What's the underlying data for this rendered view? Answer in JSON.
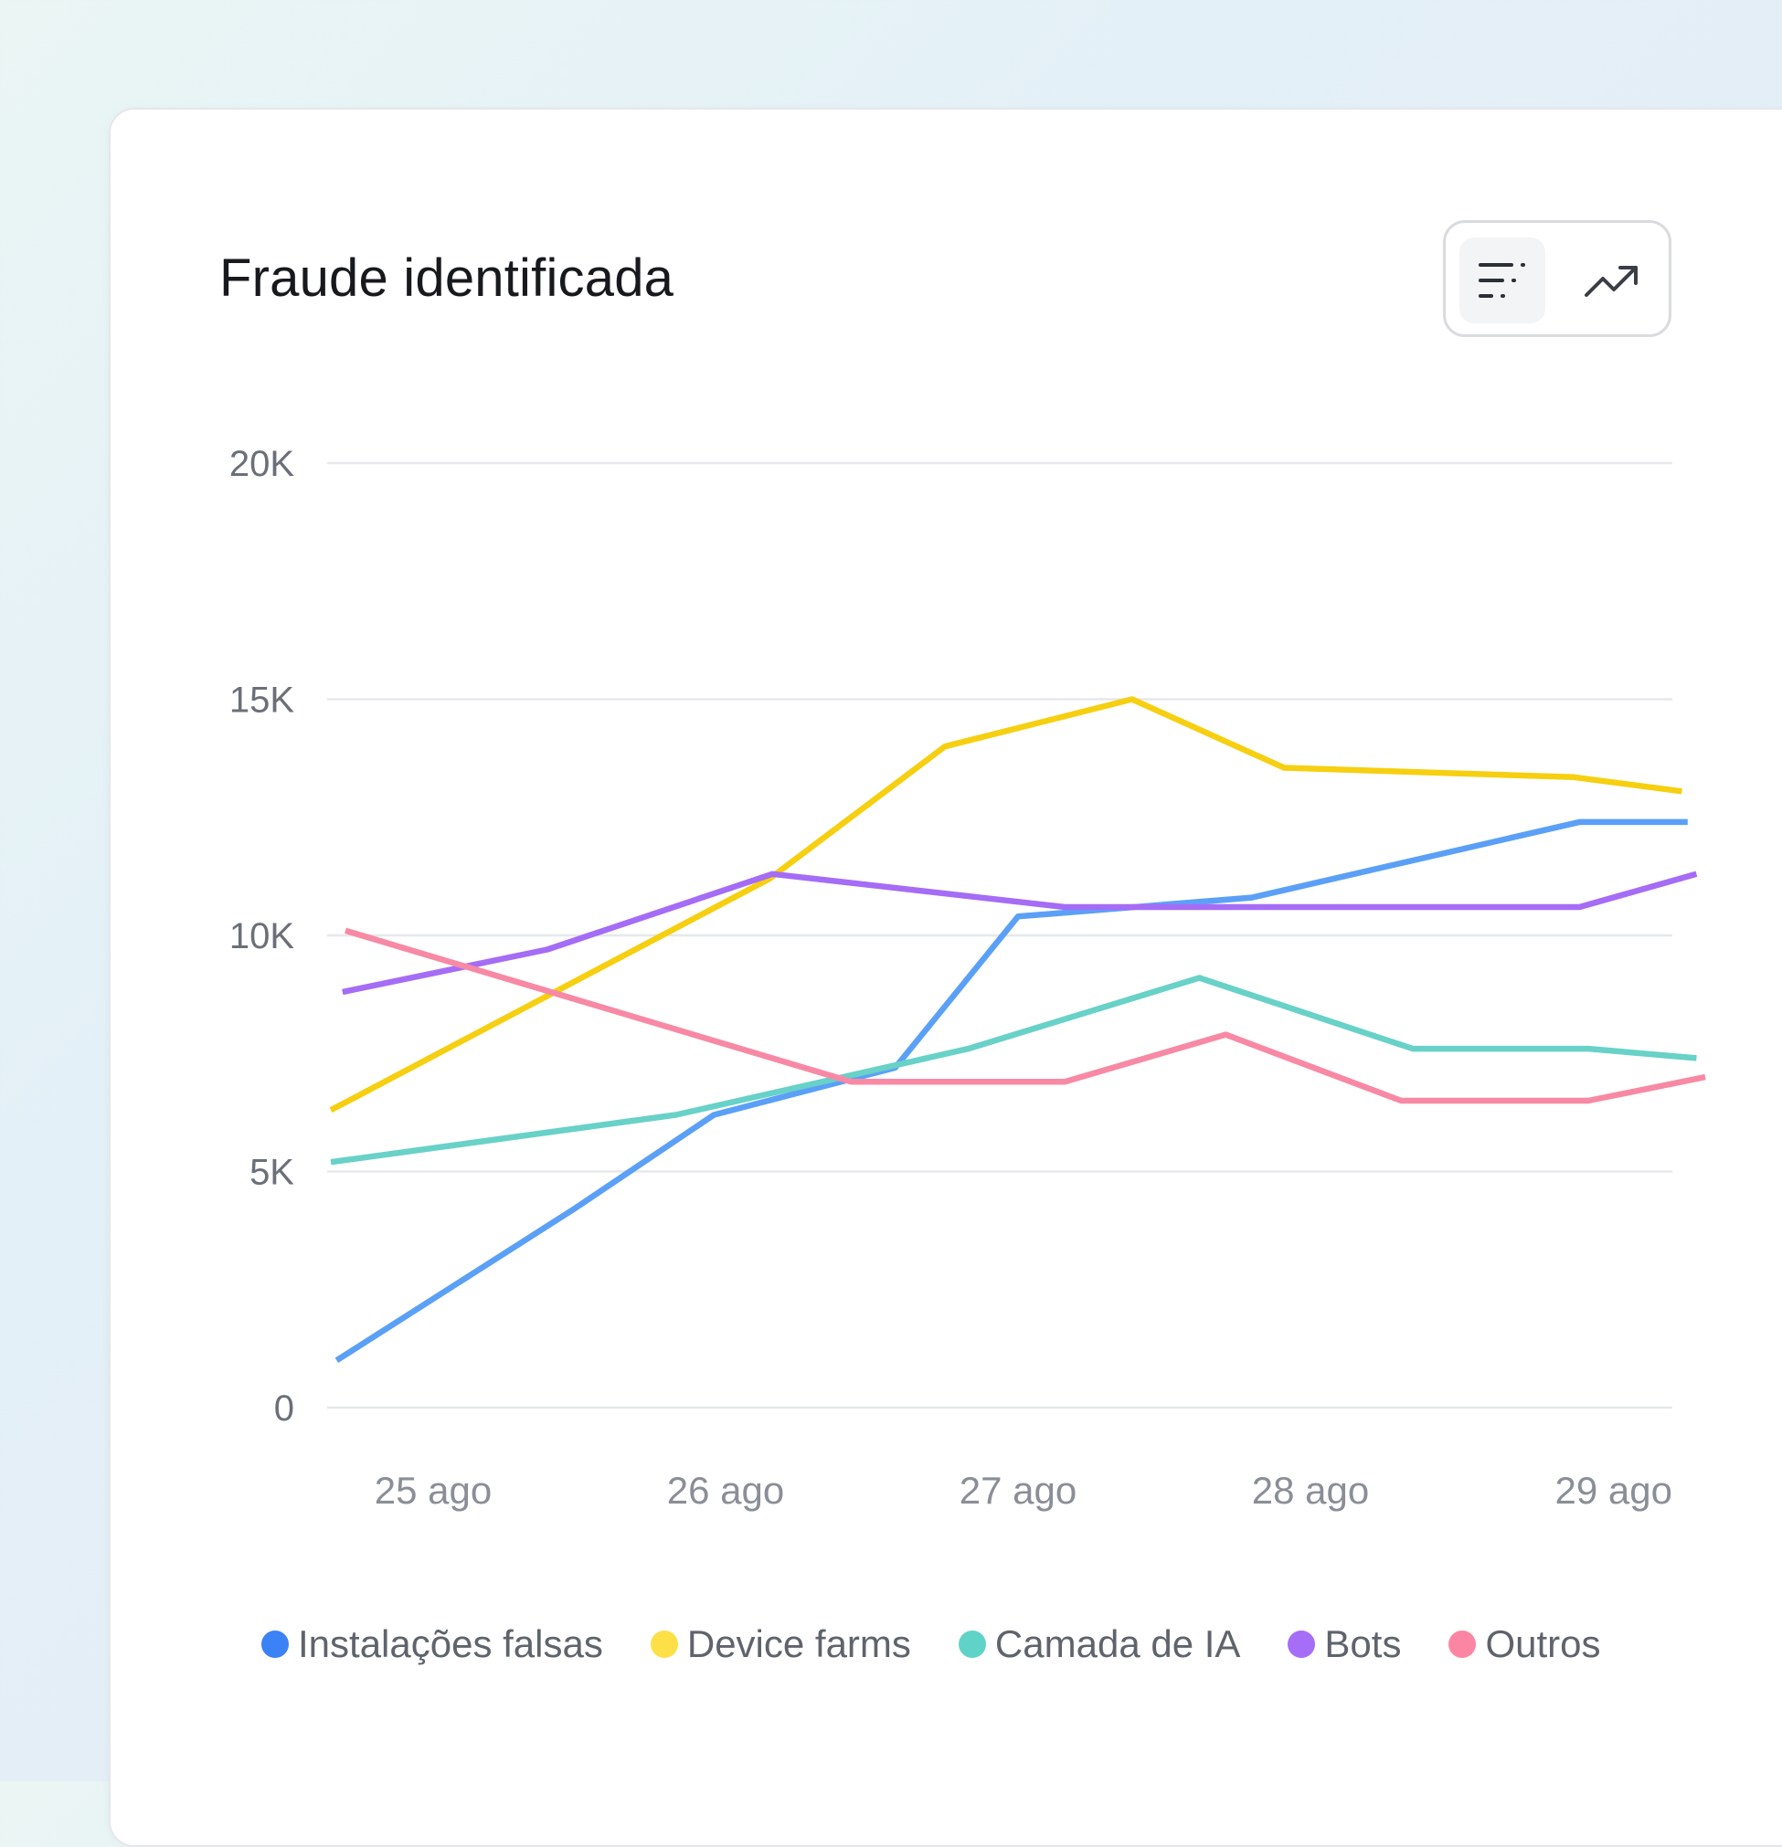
{
  "header": {
    "title": "Fraude identificada"
  },
  "view_toggle": {
    "buttons": [
      {
        "icon": "sort-list-icon",
        "active": true
      },
      {
        "icon": "trend-up-icon",
        "active": false
      }
    ]
  },
  "chart_data": {
    "type": "line",
    "title": "Fraude identificada",
    "xlabel": "",
    "ylabel": "",
    "ylim": [
      0,
      20000
    ],
    "xlim": [
      0,
      4.34
    ],
    "y_ticks": [
      {
        "value": 0,
        "label": "0"
      },
      {
        "value": 5000,
        "label": "5K"
      },
      {
        "value": 10000,
        "label": "10K"
      },
      {
        "value": 15000,
        "label": "15K"
      },
      {
        "value": 20000,
        "label": "20K"
      }
    ],
    "x_ticks": [
      {
        "value": 0.35,
        "label": "25 ago"
      },
      {
        "value": 1.35,
        "label": "26 ago"
      },
      {
        "value": 2.35,
        "label": "27 ago"
      },
      {
        "value": 3.35,
        "label": "28 ago"
      },
      {
        "value": 4.35,
        "label": "29 ago"
      }
    ],
    "grid": true,
    "legend_position": "bottom",
    "series": [
      {
        "name": "Instalações falsas",
        "color": "#5ba0f7",
        "legend_color": "#3b82f6",
        "points": [
          [
            0.02,
            1000
          ],
          [
            0.83,
            4200
          ],
          [
            1.31,
            6200
          ],
          [
            1.93,
            7200
          ],
          [
            2.35,
            10400
          ],
          [
            3.15,
            10800
          ],
          [
            4.27,
            12400
          ],
          [
            4.64,
            12400
          ]
        ]
      },
      {
        "name": "Device farms",
        "color": "#f6cf10",
        "legend_color": "#fde047",
        "points": [
          [
            0.0,
            6300
          ],
          [
            1.5,
            11200
          ],
          [
            2.1,
            14000
          ],
          [
            2.74,
            15000
          ],
          [
            3.26,
            13550
          ],
          [
            4.25,
            13350
          ],
          [
            4.62,
            13050
          ]
        ]
      },
      {
        "name": "Camada de IA",
        "color": "#68d1c8",
        "legend_color": "#5fd3c7",
        "points": [
          [
            0.0,
            5200
          ],
          [
            1.18,
            6200
          ],
          [
            2.18,
            7600
          ],
          [
            2.97,
            9100
          ],
          [
            3.7,
            7600
          ],
          [
            4.3,
            7600
          ],
          [
            4.67,
            7400
          ]
        ]
      },
      {
        "name": "Bots",
        "color": "#a56cf6",
        "legend_color": "#a66ef7",
        "points": [
          [
            0.04,
            8800
          ],
          [
            0.74,
            9700
          ],
          [
            1.51,
            11300
          ],
          [
            2.51,
            10600
          ],
          [
            4.27,
            10600
          ],
          [
            4.67,
            11300
          ]
        ]
      },
      {
        "name": "Outros",
        "color": "#f889a5",
        "legend_color": "#fb86a3",
        "points": [
          [
            0.05,
            10100
          ],
          [
            1.78,
            6900
          ],
          [
            2.51,
            6900
          ],
          [
            3.06,
            7900
          ],
          [
            3.66,
            6500
          ],
          [
            4.3,
            6500
          ],
          [
            4.7,
            7000
          ]
        ]
      }
    ]
  }
}
